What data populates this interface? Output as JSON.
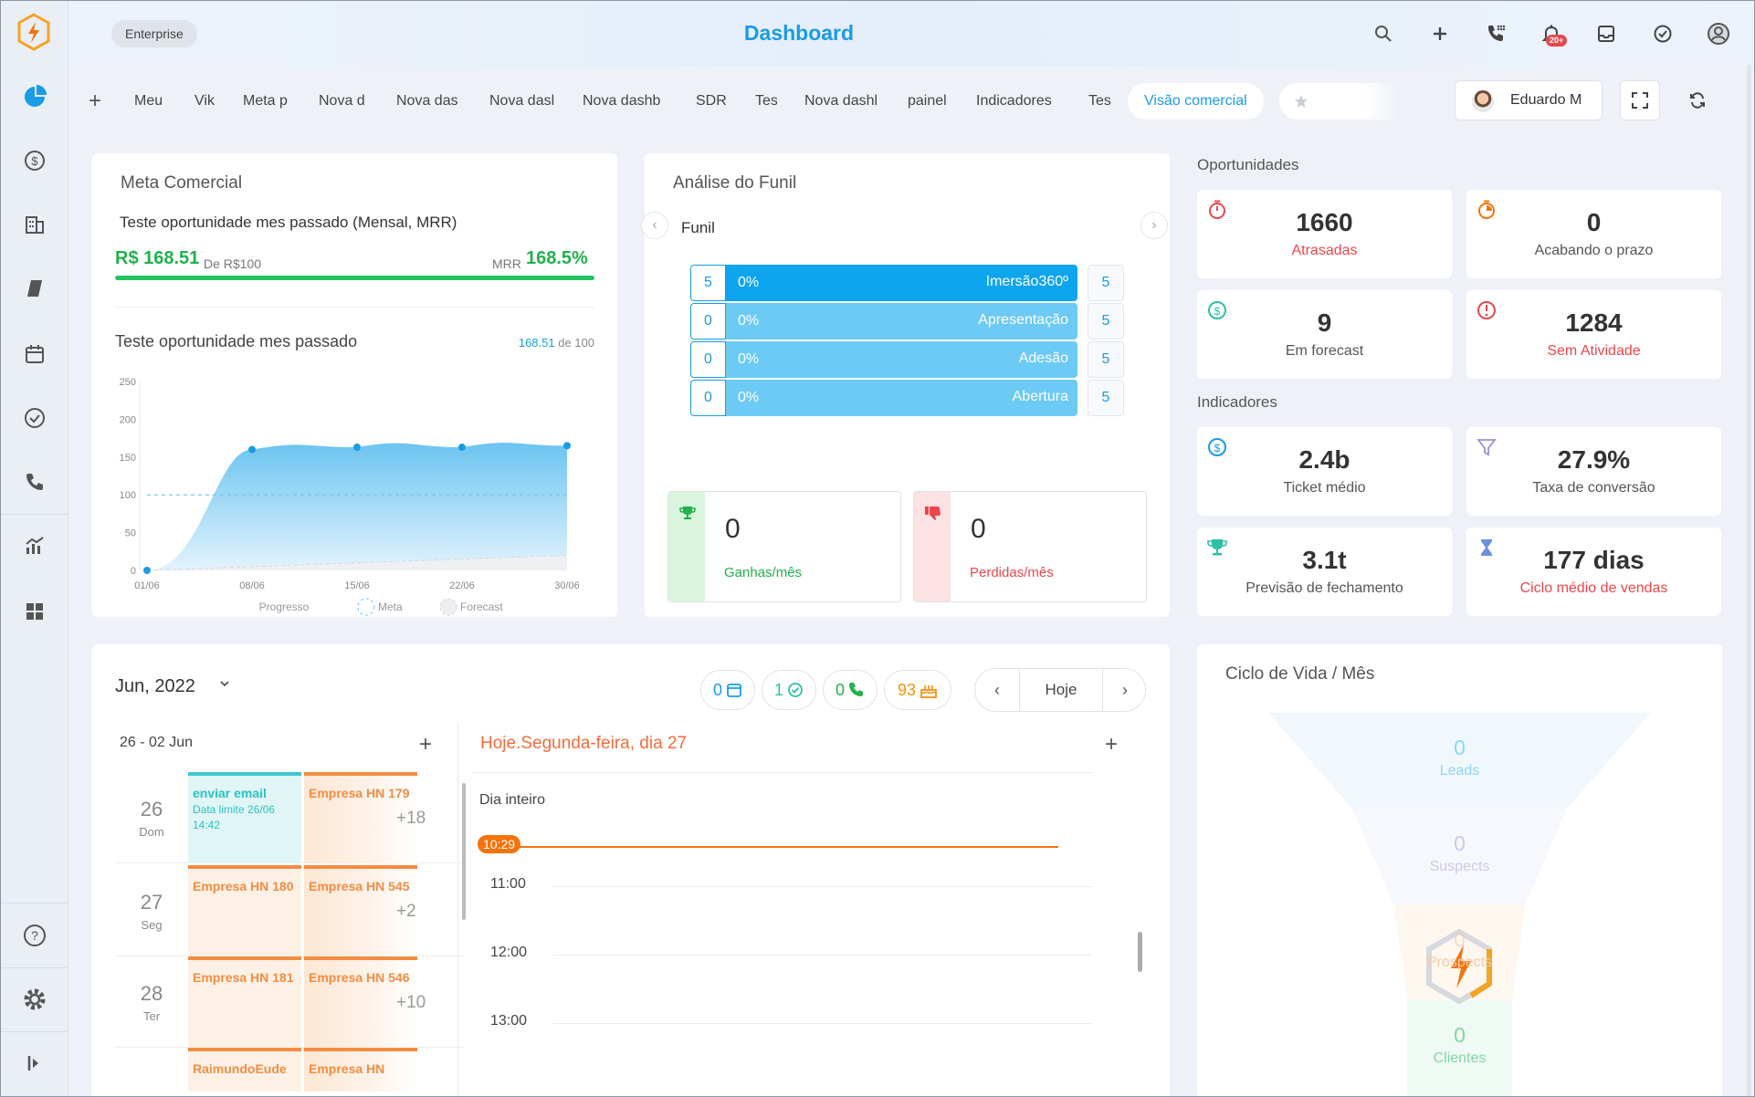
{
  "header": {
    "plan_badge": "Enterprise",
    "title": "Dashboard",
    "notifications_badge": "20+"
  },
  "tabs": {
    "items": [
      "Meu",
      "Vik",
      "Meta p",
      "Nova d",
      "Nova das",
      "Nova dasl",
      "Nova dashb",
      "SDR'",
      "Tes",
      "Nova dashl",
      "painel",
      "Indicadores",
      "Tes"
    ],
    "active": "Visão comercial",
    "user_name": "Eduardo M"
  },
  "meta": {
    "title": "Meta Comercial",
    "subtitle": "Teste oportunidade mes passado (Mensal, MRR)",
    "value": "R$ 168.51",
    "of": "De R$100",
    "mrr_label": "MRR",
    "pct": "168.5%",
    "progress": 1.0,
    "chart_title": "Teste oportunidade mes passado",
    "chart_value": "168.51",
    "chart_of": "de 100"
  },
  "chart_data": {
    "type": "area",
    "x": [
      "01/06",
      "08/06",
      "15/06",
      "22/06",
      "30/06"
    ],
    "ylim": [
      0,
      250
    ],
    "yticks": [
      "250",
      "200",
      "150",
      "100",
      "50",
      "0"
    ],
    "series": [
      {
        "name": "Progresso",
        "values": [
          0,
          160,
          163,
          163,
          165
        ]
      },
      {
        "name": "Meta",
        "values": [
          100,
          100,
          100,
          100,
          100
        ]
      },
      {
        "name": "Forecast",
        "values": [
          0,
          5,
          10,
          15,
          20
        ]
      }
    ],
    "legend": [
      "Progresso",
      "Meta",
      "Forecast"
    ],
    "colors": {
      "progresso": "#1a9be6",
      "meta": "#6cc4f0",
      "forecast": "#d4d7dc"
    }
  },
  "funnel": {
    "title": "Análise do Funil",
    "label": "Funil",
    "rows": [
      {
        "left": "5",
        "pct": "0%",
        "name": "Imersão360º",
        "right": "5",
        "color": "#0ea5ef"
      },
      {
        "left": "0",
        "pct": "0%",
        "name": "Apresentação",
        "right": "5",
        "color": "#6ccaf5"
      },
      {
        "left": "0",
        "pct": "0%",
        "name": "Adesão",
        "right": "5",
        "color": "#6ccaf5"
      },
      {
        "left": "0",
        "pct": "0%",
        "name": "Abertura",
        "right": "5",
        "color": "#6ccaf5"
      }
    ],
    "won_value": "0",
    "won_label": "Ganhas/mês",
    "lost_value": "0",
    "lost_label": "Perdidas/mês"
  },
  "oportunidades": {
    "title": "Oportunidades",
    "cards": [
      {
        "value": "1660",
        "label": "Atrasadas",
        "icon": "timer-icon"
      },
      {
        "value": "0",
        "label": "Acabando o prazo",
        "icon": "stopwatch-icon"
      },
      {
        "value": "9",
        "label": "Em forecast",
        "icon": "dollar-icon"
      },
      {
        "value": "1284",
        "label": "Sem Atividade",
        "icon": "alert-icon"
      }
    ]
  },
  "indicadores": {
    "title": "Indicadores",
    "cards": [
      {
        "value": "2.4b",
        "label": "Ticket médio",
        "icon": "dollar-icon"
      },
      {
        "value": "27.9%",
        "label": "Taxa de conversão",
        "icon": "funnel-icon"
      },
      {
        "value": "3.1t",
        "label": "Previsão de fechamento",
        "icon": "trophy-icon"
      },
      {
        "value": "177 dias",
        "label": "Ciclo médio de vendas",
        "icon": "hourglass-icon"
      }
    ]
  },
  "calendar": {
    "month": "Jun, 2022",
    "counts": {
      "tasks": "0",
      "done": "1",
      "calls": "0",
      "birthdays": "93"
    },
    "today_button": "Hoje",
    "week_range": "26 - 02 Jun",
    "today_label": "Hoje.Segunda-feira, dia 27",
    "all_day": "Dia inteiro",
    "now": "10:29",
    "hours": [
      "11:00",
      "12:00",
      "13:00"
    ],
    "days": [
      {
        "num": "26",
        "name": "Dom",
        "ev1_title": "enviar email",
        "ev1_sub": "Data limite 26/06 14:42",
        "ev2_title": "Empresa HN 179",
        "more": "+18"
      },
      {
        "num": "27",
        "name": "Seg",
        "ev1_title": "Empresa HN 180",
        "ev1_sub": "",
        "ev2_title": "Empresa HN 545",
        "more": "+2"
      },
      {
        "num": "28",
        "name": "Ter",
        "ev1_title": "Empresa HN 181",
        "ev1_sub": "",
        "ev2_title": "Empresa HN 546",
        "more": "+10"
      },
      {
        "num": "",
        "name": "",
        "ev1_title": "RaimundoEude",
        "ev1_sub": "",
        "ev2_title": "Empresa HN",
        "more": ""
      }
    ]
  },
  "ciclo": {
    "title": "Ciclo de Vida / Mês",
    "stages": [
      {
        "value": "0",
        "label": "Leads"
      },
      {
        "value": "0",
        "label": "Suspects"
      },
      {
        "value": "0",
        "label": "Prospects"
      },
      {
        "value": "0",
        "label": "Clientes"
      }
    ]
  }
}
